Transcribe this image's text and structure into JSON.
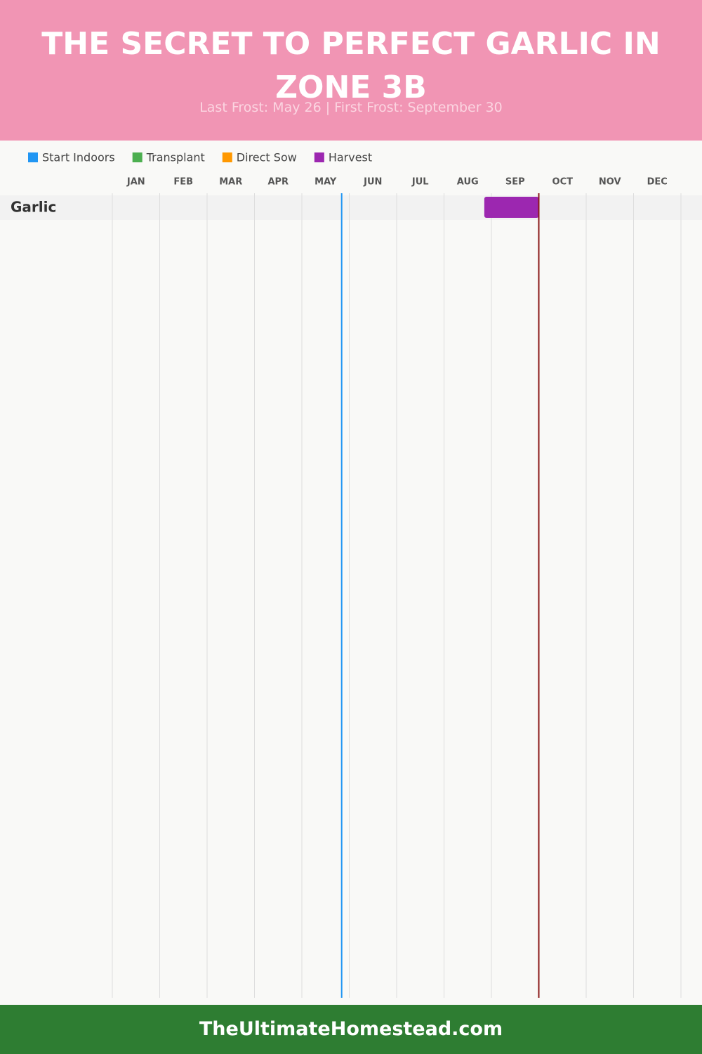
{
  "chart_data": {
    "type": "gantt",
    "title": "THE SECRET TO PERFECT GARLIC IN ZONE 3B",
    "subtitle": "Last Frost: May 26 | First Frost: September 30",
    "categories": [
      "JAN",
      "FEB",
      "MAR",
      "APR",
      "MAY",
      "JUN",
      "JUL",
      "AUG",
      "SEP",
      "OCT",
      "NOV",
      "DEC"
    ],
    "xlim": [
      0,
      12
    ],
    "grid": true,
    "series": [
      {
        "name": "Start Indoors",
        "color": "#2196f3"
      },
      {
        "name": "Transplant",
        "color": "#4caf50"
      },
      {
        "name": "Direct Sow",
        "color": "#ff9800"
      },
      {
        "name": "Harvest",
        "color": "#9c27b0"
      }
    ],
    "rows": [
      {
        "label": "Garlic",
        "bars": [
          {
            "series": 3,
            "start": 7.85,
            "end": 9.0
          }
        ]
      }
    ],
    "frost_lines": [
      {
        "value": 4.84,
        "color": "#2196f3"
      },
      {
        "value": 9.0,
        "color": "#8b1a1a"
      }
    ]
  },
  "footer": "TheUltimateHomestead.com"
}
